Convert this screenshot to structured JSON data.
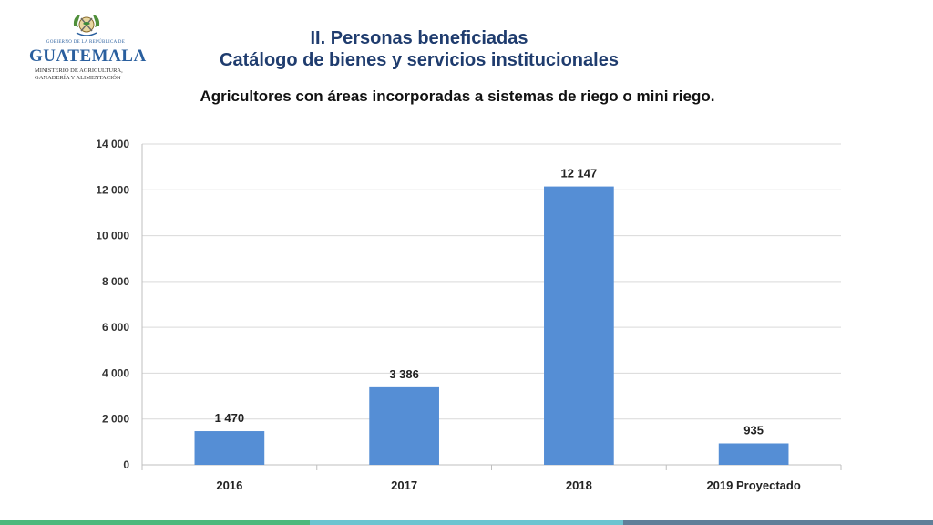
{
  "header": {
    "title_line1": "II. Personas beneficiadas",
    "title_line2": "Catálogo de bienes y servicios institucionales"
  },
  "logo": {
    "small_text": "GOBIERNO DE LA REPÚBLICA DE",
    "name": "GUATEMALA",
    "sub_line1": "MINISTERIO DE AGRICULTURA,",
    "sub_line2": "GANADERÍA Y ALIMENTACIÓN",
    "emblem_icon": "coat-of-arms-icon"
  },
  "colors": {
    "bar": "#558ed5",
    "grid": "#d9d9d9",
    "title": "#1f3c6e",
    "footer": [
      "#4cb87c",
      "#6cc4d0",
      "#607f99"
    ]
  },
  "chart_data": {
    "type": "bar",
    "title": "Agricultores con áreas incorporadas a sistemas de riego o mini riego.",
    "categories": [
      "2016",
      "2017",
      "2018",
      "2019 Proyectado"
    ],
    "values": [
      1470,
      3386,
      12147,
      935
    ],
    "data_labels": [
      "1 470",
      "3 386",
      "12 147",
      "935"
    ],
    "ylim": [
      0,
      14000
    ],
    "yticks": [
      0,
      2000,
      4000,
      6000,
      8000,
      10000,
      12000,
      14000
    ],
    "ytick_labels": [
      "0",
      "2 000",
      "4 000",
      "6 000",
      "8 000",
      "10 000",
      "12 000",
      "14 000"
    ],
    "xlabel": "",
    "ylabel": "",
    "grid": true,
    "legend": "none"
  }
}
